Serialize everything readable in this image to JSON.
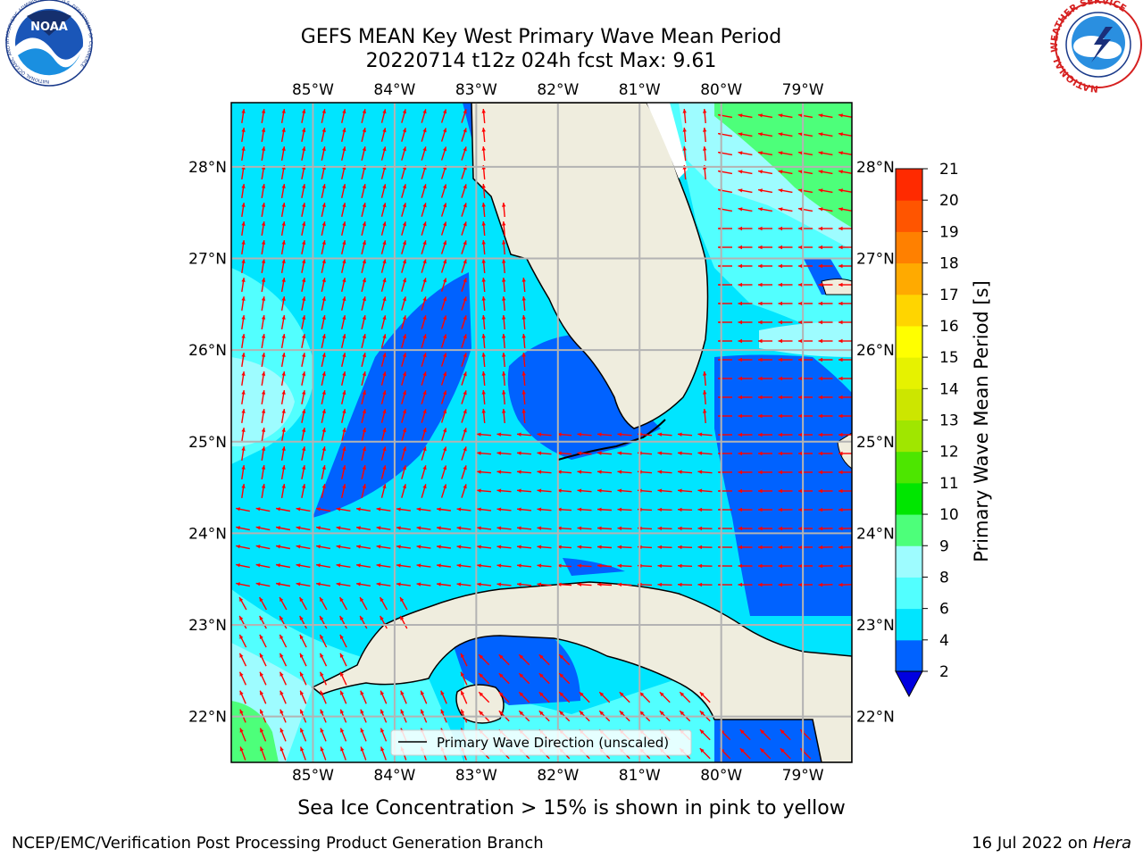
{
  "title": {
    "line1": "GEFS MEAN Key West Primary Wave Mean Period",
    "line2": "20220714 t12z 024h fcst   Max: 9.61"
  },
  "map": {
    "lon_range": [
      -86,
      -78.4
    ],
    "lat_range": [
      21.5,
      28.7
    ],
    "lon_ticks": [
      {
        "value": -85,
        "label": "85°W"
      },
      {
        "value": -84,
        "label": "84°W"
      },
      {
        "value": -83,
        "label": "83°W"
      },
      {
        "value": -82,
        "label": "82°W"
      },
      {
        "value": -81,
        "label": "81°W"
      },
      {
        "value": -80,
        "label": "80°W"
      },
      {
        "value": -79,
        "label": "79°W"
      }
    ],
    "lat_ticks": [
      {
        "value": 28,
        "label": "28°N"
      },
      {
        "value": 27,
        "label": "27°N"
      },
      {
        "value": 26,
        "label": "26°N"
      },
      {
        "value": 25,
        "label": "25°N"
      },
      {
        "value": 24,
        "label": "24°N"
      },
      {
        "value": 23,
        "label": "23°N"
      },
      {
        "value": 22,
        "label": "22°N"
      }
    ],
    "gridlines": true,
    "land_color": "#efedde",
    "arrow_color": "#ff0000"
  },
  "colorbar": {
    "title": "Primary Wave Mean Period [s]",
    "ticks": [
      "2",
      "4",
      "6",
      "8",
      "9",
      "10",
      "11",
      "12",
      "13",
      "14",
      "15",
      "16",
      "17",
      "18",
      "19",
      "20",
      "21"
    ],
    "colors": [
      "#0062ff",
      "#00e5ff",
      "#52ffff",
      "#9efcff",
      "#4dff7a",
      "#00e600",
      "#4de600",
      "#a0e600",
      "#cce600",
      "#e6f200",
      "#ffff00",
      "#ffd500",
      "#ffaa00",
      "#ff8000",
      "#ff5500",
      "#ff2a00"
    ],
    "under_color": "#0000e0"
  },
  "legend": {
    "label": "Primary Wave Direction (unscaled)"
  },
  "note": "Sea Ice Concentration > 15% is shown in pink to yellow",
  "footer": {
    "left": "NCEP/EMC/Verification Post Processing Product Generation Branch",
    "right_prefix": "16 Jul 2022 on ",
    "right_host": "Hera"
  },
  "logos": {
    "noaa_text": "NOAA",
    "nws_text": "NATIONAL WEATHER SERVICE",
    "noaa_ring_text": "NATIONAL OCEANIC AND ATMOSPHERIC ADMINISTRATION · U.S. DEPARTMENT OF COMMERCE"
  }
}
